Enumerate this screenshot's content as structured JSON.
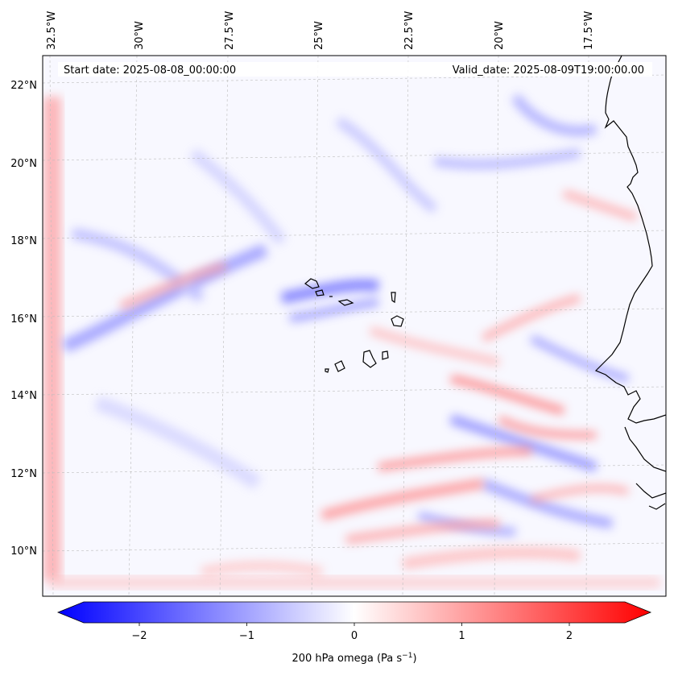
{
  "map": {
    "start_date": "Start date: 2025-08-08_00:00:00",
    "valid_date": "Valid_date: 2025-08-09T19:00:00.00",
    "lon_labels": [
      "32.5°W",
      "30°W",
      "27.5°W",
      "25°W",
      "22.5°W",
      "20°W",
      "17.5°W"
    ],
    "lat_labels": [
      "22°N",
      "20°N",
      "18°N",
      "16°N",
      "14°N",
      "12°N",
      "10°N"
    ],
    "colors": {
      "negative": "#0000ff",
      "zero": "#ffffff",
      "positive": "#ff0000",
      "coast": "#000000",
      "grid": "#b0b0b0"
    }
  },
  "colorbar": {
    "label": "200 hPa omega (Pa s",
    "label_sup": "−1",
    "label_close": ")",
    "range": [
      -2.7,
      2.7
    ],
    "ticks": [
      {
        "value": -2,
        "label": "−2"
      },
      {
        "value": -1,
        "label": "−1"
      },
      {
        "value": 0,
        "label": "0"
      },
      {
        "value": 1,
        "label": "1"
      },
      {
        "value": 2,
        "label": "2"
      }
    ]
  }
}
